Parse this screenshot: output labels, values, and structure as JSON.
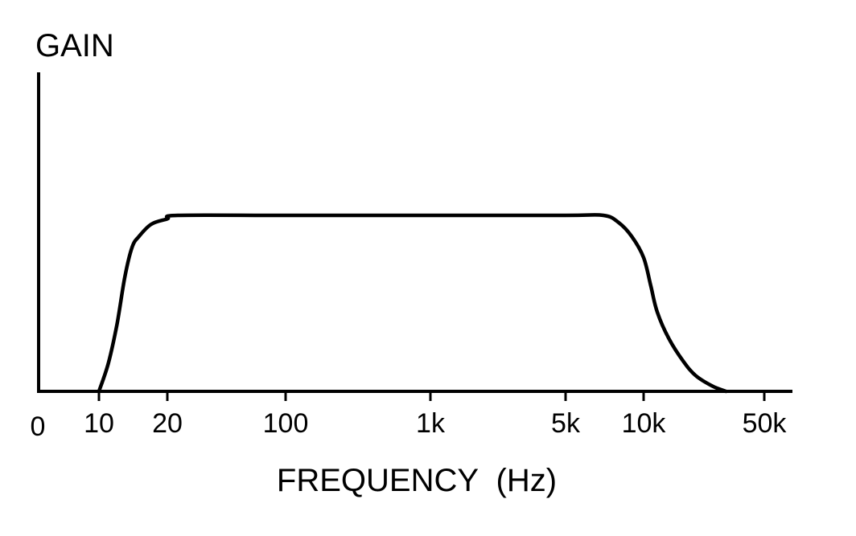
{
  "chart_data": {
    "type": "line",
    "title": "",
    "ylabel": "GAIN",
    "xlabel": "FREQUENCY  (Hz)",
    "x_scale": "log",
    "grid": false,
    "ticks": [
      {
        "label": "0"
      },
      {
        "label": "10",
        "value": 10
      },
      {
        "label": "20",
        "value": 20
      },
      {
        "label": "100",
        "value": 100
      },
      {
        "label": "1k",
        "value": 1000
      },
      {
        "label": "5k",
        "value": 5000
      },
      {
        "label": "10k",
        "value": 10000
      },
      {
        "label": "50k",
        "value": 50000
      }
    ],
    "series": [
      {
        "x": [
          10,
          11,
          12,
          13,
          14,
          15,
          17,
          20,
          23,
          100,
          1000,
          5000,
          7000,
          8000,
          9000,
          10000,
          11000,
          12000,
          14000,
          17000,
          20000,
          25000,
          30000
        ],
        "y": [
          0,
          0.16,
          0.38,
          0.65,
          0.82,
          0.88,
          0.95,
          0.98,
          1.0,
          1.0,
          1.0,
          1.0,
          1.0,
          0.96,
          0.88,
          0.76,
          0.6,
          0.45,
          0.3,
          0.17,
          0.09,
          0.03,
          0
        ]
      }
    ],
    "colors": {
      "line": "#000000",
      "axes": "#000000",
      "text": "#000000"
    }
  }
}
